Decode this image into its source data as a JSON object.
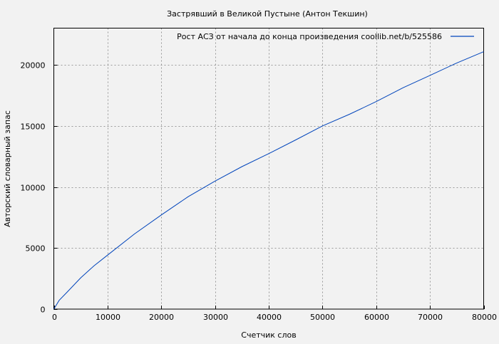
{
  "chart_data": {
    "type": "line",
    "title": "Застрявший в Великой Пустыне (Антон Текшин)",
    "xlabel": "Счетчик слов",
    "ylabel": "Авторский словарный запас",
    "xlim": [
      0,
      80000
    ],
    "ylim": [
      0,
      23000
    ],
    "xticks": [
      0,
      10000,
      20000,
      30000,
      40000,
      50000,
      60000,
      70000,
      80000
    ],
    "yticks": [
      0,
      5000,
      10000,
      15000,
      20000
    ],
    "grid": true,
    "legend_position": "top-right",
    "series": [
      {
        "name": "Рост АСЗ от начала до конца произведения  coollib.net/b/525586",
        "color": "#0044bb",
        "x": [
          0,
          1000,
          2500,
          5000,
          7500,
          10000,
          15000,
          20000,
          25000,
          30000,
          35000,
          40000,
          45000,
          50000,
          55000,
          60000,
          65000,
          70000,
          75000,
          80000
        ],
        "y": [
          0,
          720,
          1400,
          2560,
          3550,
          4420,
          6150,
          7710,
          9200,
          10480,
          11660,
          12730,
          13850,
          15000,
          15950,
          16990,
          18120,
          19130,
          20150,
          21070
        ]
      }
    ]
  }
}
